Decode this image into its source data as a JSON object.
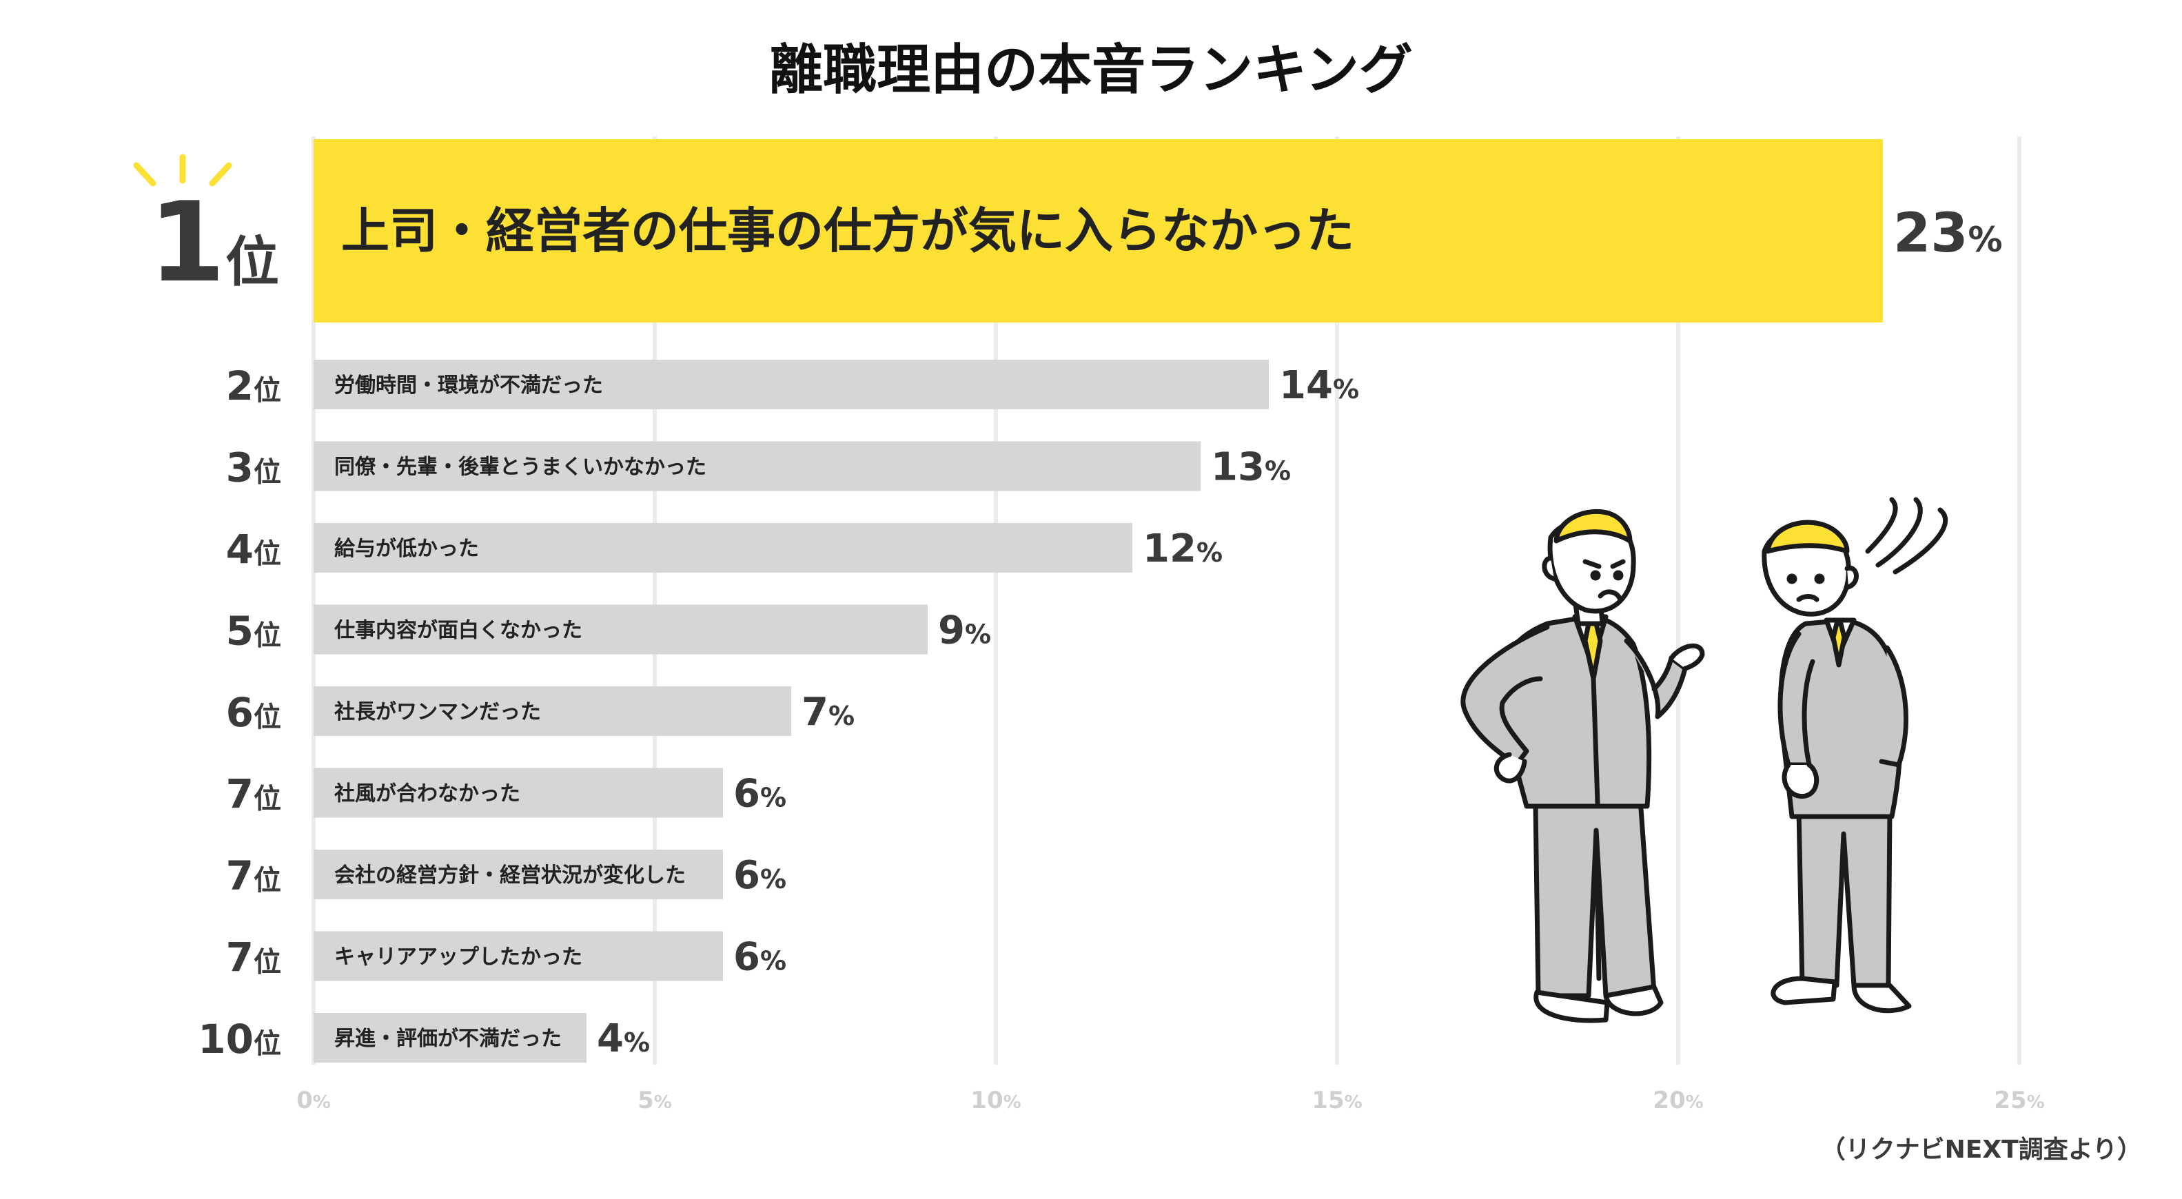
{
  "chart_data": {
    "type": "bar",
    "orientation": "horizontal",
    "title": "離職理由の本音ランキング",
    "ranks": [
      "1",
      "2",
      "3",
      "4",
      "5",
      "6",
      "7",
      "7",
      "7",
      "10"
    ],
    "rank_suffix": "位",
    "categories": [
      "上司・経営者の仕事の仕方が気に入らなかった",
      "労働時間・環境が不満だった",
      "同僚・先輩・後輩とうまくいかなかった",
      "給与が低かった",
      "仕事内容が面白くなかった",
      "社長がワンマンだった",
      "社風が合わなかった",
      "会社の経営方針・経営状況が変化した",
      "キャリアアップしたかった",
      "昇進・評価が不満だった"
    ],
    "values": [
      23,
      14,
      13,
      12,
      9,
      7,
      6,
      6,
      6,
      4
    ],
    "value_suffix": "%",
    "xlim": [
      0,
      25
    ],
    "xticks": [
      0,
      5,
      10,
      15,
      20,
      25
    ],
    "grid": true,
    "highlight_index": 0,
    "colors": {
      "highlight": "#FCE033",
      "bar": "#D6D6D6",
      "grid": "#EBEBEB",
      "text": "#3A3A3A"
    },
    "source": "（リクナビNEXT調査より）"
  },
  "illustration": {
    "name": "two-businessmen-illustration",
    "colors": {
      "suit": "#C8C8C8",
      "hair": "#FCE033",
      "line": "#1A1A1A"
    }
  }
}
